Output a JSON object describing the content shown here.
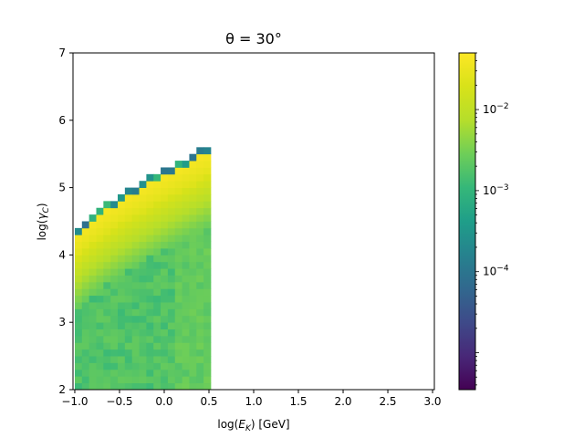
{
  "chart_data": {
    "type": "heatmap",
    "title": "θ = 30°",
    "xlabel": "log(E_K) [GeV]",
    "ylabel": "log(γ_C)",
    "xlim": [
      -1.02,
      3.02
    ],
    "ylim": [
      2,
      7
    ],
    "x_ticks": [
      "−1.0",
      "−0.5",
      "0.0",
      "0.5",
      "1.0",
      "1.5",
      "2.0",
      "2.5",
      "3.0"
    ],
    "y_ticks": [
      "2",
      "3",
      "4",
      "5",
      "6",
      "7"
    ],
    "grid": false,
    "colormap": "viridis",
    "colorbar": {
      "scale": "log",
      "range": [
        3.5e-06,
        0.05
      ],
      "tick_labels": [
        "10^−4",
        "10^−3",
        "10^−2"
      ]
    },
    "bins": {
      "x_range": [
        -1.0,
        0.55
      ],
      "y_range": [
        2.0,
        5.7
      ],
      "x_bin_width": 0.08,
      "y_bin_width": 0.1
    },
    "description": "Histogram 2D: populated for log(E_K) from -1.0 to 0.55; upper boundary rises from log(γ_C)≈4.35 at -1.0 to ≈5.65 at 0.55. Near the boundary values are high (yellow ~0.03-0.05), with a sparse darker row at the very edge (~1e-4 to 1e-3). Interior values ~1e-3 to 2e-3 (teal)."
  }
}
